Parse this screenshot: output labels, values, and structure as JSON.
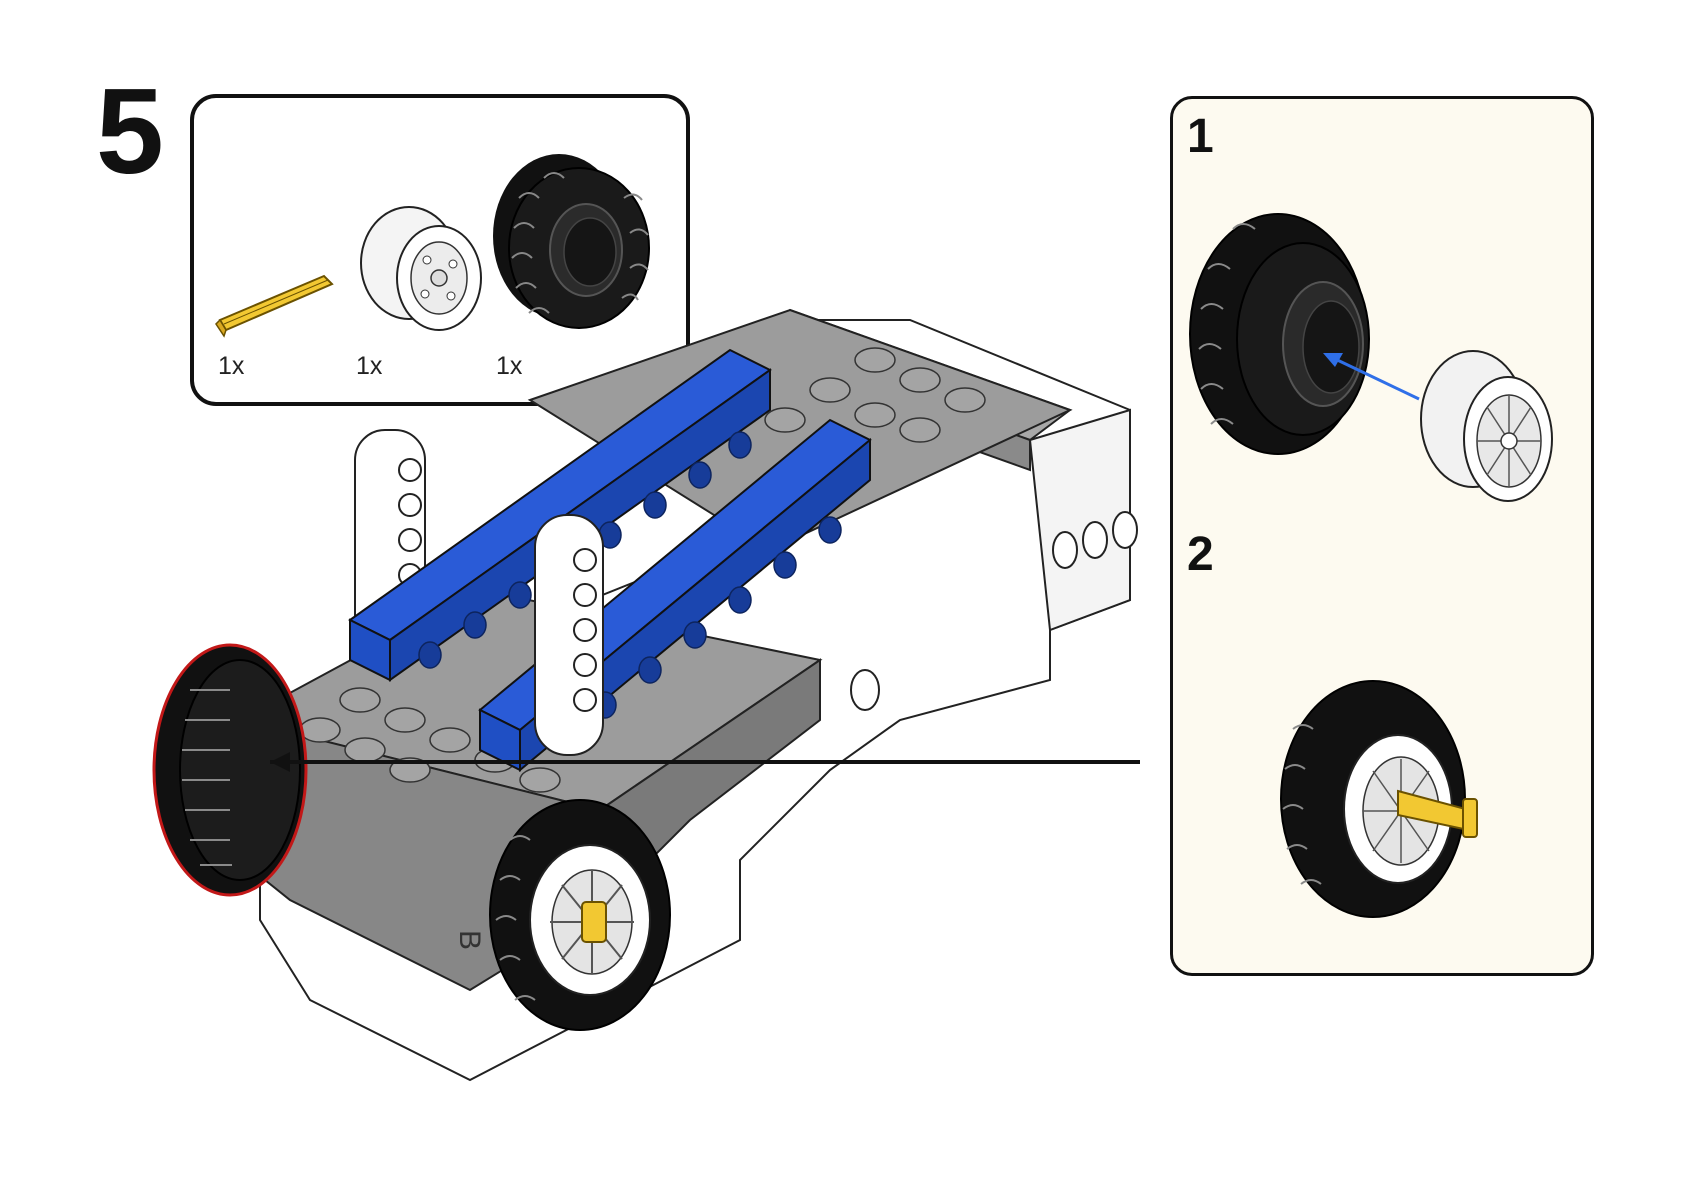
{
  "step": {
    "number": "5"
  },
  "parts_list": {
    "items": [
      {
        "name": "axle",
        "qty": "1x",
        "color": "#f2c832"
      },
      {
        "name": "rim",
        "qty": "1x",
        "color": "#e8e8e8"
      },
      {
        "name": "tire",
        "qty": "1x",
        "color": "#111111"
      }
    ]
  },
  "sub_steps": [
    {
      "number": "1"
    },
    {
      "number": "2"
    }
  ],
  "colors": {
    "blue_beam": "#1f4fc4",
    "gray_plate": "#8a8a8a",
    "light_gray": "#9c9c9c",
    "white_part": "#ffffff",
    "axle_yellow": "#f2c832",
    "arrow_blue": "#2f6fe8",
    "callout_bg": "#fdfaf0"
  }
}
